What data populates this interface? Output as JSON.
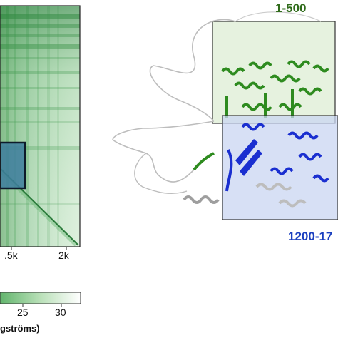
{
  "heatmap": {
    "x_tick_labels": [
      ".5k",
      "2k"
    ],
    "colorbar_tick_labels": [
      "25",
      "30"
    ],
    "colorbar_title": "gströms)",
    "colors": {
      "low": "#0b6b2a",
      "high": "#ffffff",
      "box": "#0d1b2a",
      "highlight": "#3f7fa0"
    }
  },
  "structure": {
    "region_top_label": "1-500",
    "region_bottom_label": "1200-17",
    "colors": {
      "green": "#2e8b1f",
      "blue": "#1a2fd0",
      "grey": "#bdbdbd"
    }
  }
}
